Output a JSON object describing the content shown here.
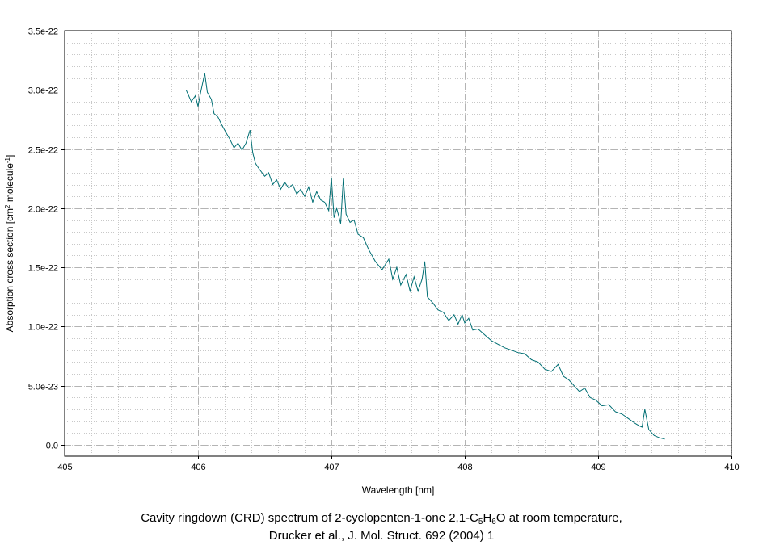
{
  "chart_data": {
    "type": "line",
    "xlabel": "Wavelength [nm]",
    "ylabel": {
      "pre": "Absorption cross section [cm",
      "sup1": "2",
      "mid": " molecule",
      "sup2": "-1",
      "post": "]"
    },
    "xlim": [
      405,
      410
    ],
    "ylim": [
      -1e-23,
      3.5e-22
    ],
    "x_ticks": [
      405,
      406,
      407,
      408,
      409,
      410
    ],
    "x_tick_labels": [
      "405",
      "406",
      "407",
      "408",
      "409",
      "410"
    ],
    "y_ticks": [
      0,
      5e-23,
      1e-22,
      1.5e-22,
      2e-22,
      2.5e-22,
      3e-22,
      3.5e-22
    ],
    "y_tick_labels": [
      "0.0",
      "5.0e-23",
      "1.0e-22",
      "1.5e-22",
      "2.0e-22",
      "2.5e-22",
      "3.0e-22",
      "3.5e-22"
    ],
    "grid": true,
    "line_color": "#006e73",
    "series": [
      {
        "x": [
          405.91,
          405.95,
          405.98,
          406.0,
          406.02,
          406.05,
          406.07,
          406.1,
          406.12,
          406.15,
          406.18,
          406.21,
          406.24,
          406.27,
          406.3,
          406.33,
          406.36,
          406.39,
          406.41,
          406.43,
          406.46,
          406.5,
          406.53,
          406.56,
          406.59,
          406.62,
          406.65,
          406.68,
          406.71,
          406.74,
          406.77,
          406.8,
          406.83,
          406.86,
          406.89,
          406.92,
          406.95,
          406.98,
          407.0,
          407.02,
          407.04,
          407.07,
          407.09,
          407.11,
          407.14,
          407.17,
          407.2,
          407.24,
          407.28,
          407.33,
          407.38,
          407.43,
          407.46,
          407.49,
          407.52,
          407.56,
          407.59,
          407.62,
          407.65,
          407.68,
          407.7,
          407.72,
          407.76,
          407.8,
          407.84,
          407.88,
          407.92,
          407.95,
          407.98,
          408.0,
          408.03,
          408.06,
          408.1,
          408.15,
          408.2,
          408.25,
          408.3,
          408.35,
          408.4,
          408.45,
          408.5,
          408.55,
          408.6,
          408.65,
          408.7,
          408.74,
          408.78,
          408.82,
          408.86,
          408.9,
          408.94,
          408.98,
          409.03,
          409.08,
          409.13,
          409.18,
          409.23,
          409.28,
          409.31,
          409.33,
          409.35,
          409.38,
          409.42,
          409.46,
          409.5
        ],
        "y": [
          3e-22,
          2.9e-22,
          2.95e-22,
          2.86e-22,
          2.98e-22,
          3.14e-22,
          2.98e-22,
          2.92e-22,
          2.8e-22,
          2.77e-22,
          2.7e-22,
          2.64e-22,
          2.58e-22,
          2.51e-22,
          2.55e-22,
          2.49e-22,
          2.55e-22,
          2.66e-22,
          2.47e-22,
          2.38e-22,
          2.33e-22,
          2.27e-22,
          2.3e-22,
          2.2e-22,
          2.24e-22,
          2.16e-22,
          2.22e-22,
          2.17e-22,
          2.2e-22,
          2.12e-22,
          2.16e-22,
          2.1e-22,
          2.18e-22,
          2.05e-22,
          2.14e-22,
          2.07e-22,
          2.05e-22,
          1.98e-22,
          2.26e-22,
          1.92e-22,
          2e-22,
          1.87e-22,
          2.25e-22,
          1.95e-22,
          1.88e-22,
          1.9e-22,
          1.78e-22,
          1.75e-22,
          1.65e-22,
          1.55e-22,
          1.48e-22,
          1.57e-22,
          1.4e-22,
          1.5e-22,
          1.35e-22,
          1.44e-22,
          1.3e-22,
          1.42e-22,
          1.3e-22,
          1.4e-22,
          1.55e-22,
          1.25e-22,
          1.2e-22,
          1.14e-22,
          1.12e-22,
          1.05e-22,
          1.1e-22,
          1.02e-22,
          1.1e-22,
          1.03e-22,
          1.07e-22,
          9.7e-23,
          9.8e-23,
          9.3e-23,
          8.8e-23,
          8.5e-23,
          8.2e-23,
          8e-23,
          7.8e-23,
          7.7e-23,
          7.2e-23,
          7e-23,
          6.4e-23,
          6.2e-23,
          6.8e-23,
          5.8e-23,
          5.5e-23,
          5e-23,
          4.5e-23,
          4.8e-23,
          4e-23,
          3.8e-23,
          3.3e-23,
          3.4e-23,
          2.8e-23,
          2.6e-23,
          2.2e-23,
          1.8e-23,
          1.6e-23,
          1.5e-23,
          3e-23,
          1.3e-23,
          8e-24,
          6e-24,
          5e-24
        ]
      }
    ]
  },
  "caption": {
    "line1_pre": "Cavity ringdown (CRD) spectrum of 2-cyclopenten-1-one 2,1-C",
    "sub1": "5",
    "line1_mid1": "H",
    "sub2": "6",
    "line1_post": "O at room temperature,",
    "line2": "Drucker et al., J. Mol. Struct. 692 (2004) 1"
  }
}
